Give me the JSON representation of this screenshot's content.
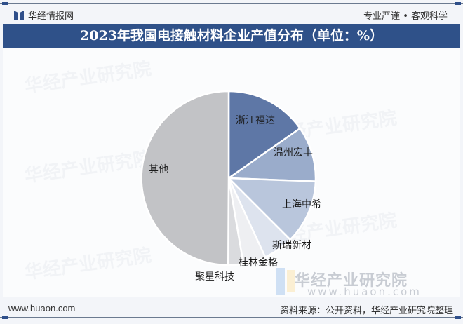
{
  "header": {
    "brand": "华经情报网",
    "slogan": "专业严谨 • 客观科学"
  },
  "title": "2023年我国电接触材料企业产值分布（单位：%）",
  "watermark": {
    "text": "华经产业研究院",
    "url": "www.huaon.com"
  },
  "footer": {
    "url": "www.huaon.com",
    "source": "资料来源：公开资料，华经产业研究院整理"
  },
  "chart_data": {
    "type": "pie",
    "title": "2023年我国电接触材料企业产值分布（单位：%）",
    "unit": "%",
    "categories": [
      "浙江福达",
      "温州宏丰",
      "上海中希",
      "斯瑞新材",
      "桂林金格",
      "聚星科技",
      "其他"
    ],
    "values": [
      15.3,
      10.3,
      11.9,
      5.6,
      4.2,
      2.8,
      49.9
    ],
    "colors": [
      "#5e77a6",
      "#9aaccb",
      "#b9c6dc",
      "#dde3ee",
      "#eeeff2",
      "#dadbde",
      "#c2c3c6"
    ],
    "start_angle": "top, clockwise",
    "legend": "none (labels inside/near slices)",
    "label_positions": "data labels on slices"
  }
}
